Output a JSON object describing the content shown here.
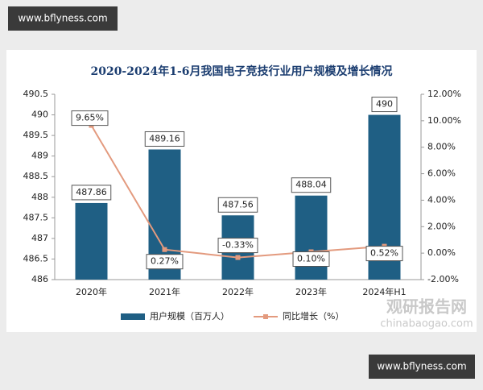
{
  "chart_data": {
    "type": "bar-line",
    "title": "2020-2024年1-6月我国电子竞技行业用户规模及增长情况",
    "categories": [
      "2020年",
      "2021年",
      "2022年",
      "2023年",
      "2024年H1"
    ],
    "series": [
      {
        "name": "用户规模（百万人）",
        "type": "bar",
        "color": "#1f5f84",
        "values": [
          487.86,
          489.16,
          487.56,
          488.04,
          490
        ]
      },
      {
        "name": "同比增长（%）",
        "type": "line",
        "axis": "y2",
        "color": "#e39a7e",
        "values": [
          9.65,
          0.27,
          -0.33,
          0.1,
          0.52
        ],
        "value_labels": [
          "9.65%",
          "0.27%",
          "-0.33%",
          "0.10%",
          "0.52%"
        ]
      }
    ],
    "ylim": [
      486,
      490.5
    ],
    "yticks": [
      486,
      486.5,
      487,
      487.5,
      488,
      488.5,
      489,
      489.5,
      490,
      490.5
    ],
    "y2lim": [
      -2,
      12
    ],
    "y2ticks": [
      {
        "value": -2,
        "label": "-2.00%"
      },
      {
        "value": 0,
        "label": "0.00%"
      },
      {
        "value": 2,
        "label": "2.00%"
      },
      {
        "value": 4,
        "label": "4.00%"
      },
      {
        "value": 6,
        "label": "6.00%"
      },
      {
        "value": 8,
        "label": "8.00%"
      },
      {
        "value": 10,
        "label": "10.00%"
      },
      {
        "value": 12,
        "label": "12.00%"
      }
    ],
    "legend": "bottom",
    "grid": false
  },
  "watermarks": {
    "site_top": "www.bflyness.com",
    "site_bottom": "www.bflyness.com",
    "brand": "观研报告网",
    "brand_url": "chinabaogao.com"
  }
}
